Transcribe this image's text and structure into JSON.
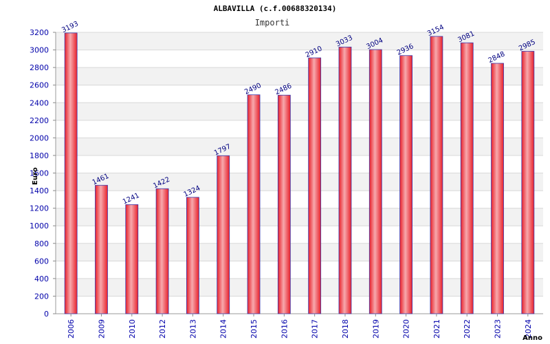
{
  "chart_data": {
    "type": "bar",
    "title": "ALBAVILLA (c.f.00688320134)",
    "subtitle": "Importi",
    "xlabel": "Anno",
    "ylabel": "Euro",
    "ylim": [
      0,
      3200
    ],
    "ytick_step": 200,
    "grid": true,
    "categories": [
      "2006",
      "2009",
      "2010",
      "2012",
      "2013",
      "2014",
      "2015",
      "2016",
      "2017",
      "2018",
      "2019",
      "2020",
      "2021",
      "2022",
      "2023",
      "2024"
    ],
    "values": [
      3193,
      1461,
      1241,
      1422,
      1324,
      1797,
      2490,
      2486,
      2910,
      3033,
      3004,
      2936,
      3154,
      3081,
      2848,
      2985
    ],
    "bar_color": "#e8202a",
    "bar_highlight": "#f7a9ad",
    "bar_edge": "#3a3ab0",
    "band_color": "#f2f2f2"
  }
}
